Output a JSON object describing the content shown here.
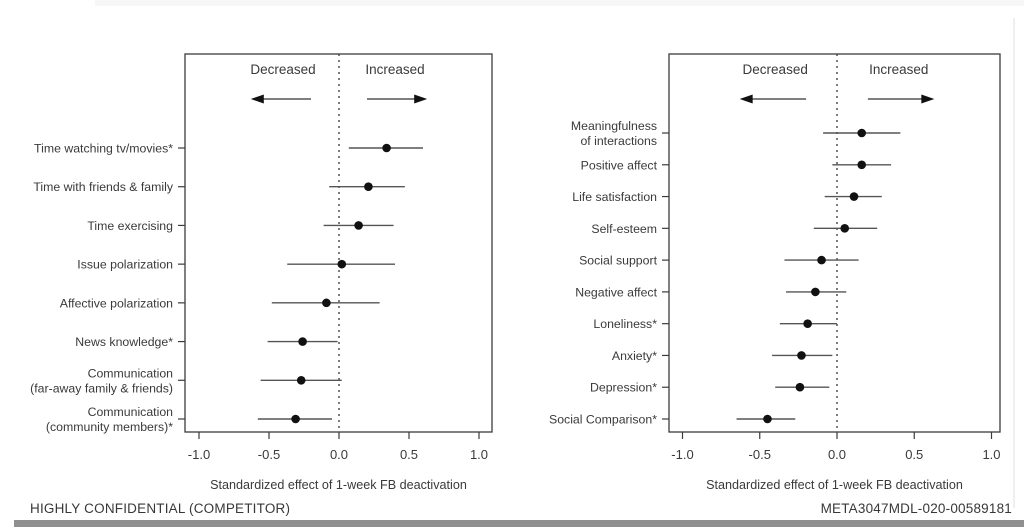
{
  "page": {
    "footer_left": "HIGHLY CONFIDENTIAL (COMPETITOR)",
    "footer_right": "META3047MDL-020-00589181"
  },
  "colors": {
    "text": "#3a3a3a",
    "box_border": "#3c3c3c",
    "ci_line": "#555555",
    "point": "#111111",
    "zero_line": "#444444",
    "footer_bar": "#8f8f8f"
  },
  "chart_data": [
    {
      "type": "scatter",
      "subtype": "forest",
      "panel": "time-use-and-politics",
      "header_decreased": "Decreased",
      "header_increased": "Increased",
      "xlabel": "Standardized effect of 1-week FB deactivation",
      "xlim": [
        -1.1,
        1.1
      ],
      "xticks": [
        -1.0,
        -0.5,
        0.0,
        0.5,
        1.0
      ],
      "xtick_labels": [
        "-1.0",
        "-0.5",
        "0.0",
        "0.5",
        "1.0"
      ],
      "zero_reference_line": true,
      "grid": false,
      "rows": [
        {
          "label": [
            "Time watching tv/movies*"
          ],
          "estimate": 0.34,
          "ci_low": 0.07,
          "ci_high": 0.6
        },
        {
          "label": [
            "Time with friends & family"
          ],
          "estimate": 0.21,
          "ci_low": -0.07,
          "ci_high": 0.47
        },
        {
          "label": [
            "Time exercising"
          ],
          "estimate": 0.14,
          "ci_low": -0.11,
          "ci_high": 0.39
        },
        {
          "label": [
            "Issue polarization"
          ],
          "estimate": 0.02,
          "ci_low": -0.37,
          "ci_high": 0.4
        },
        {
          "label": [
            "Affective polarization"
          ],
          "estimate": -0.09,
          "ci_low": -0.48,
          "ci_high": 0.29
        },
        {
          "label": [
            "News knowledge*"
          ],
          "estimate": -0.26,
          "ci_low": -0.51,
          "ci_high": -0.01
        },
        {
          "label": [
            "Communication",
            "(far-away family & friends)"
          ],
          "estimate": -0.27,
          "ci_low": -0.56,
          "ci_high": 0.02
        },
        {
          "label": [
            "Communication",
            "(community members)*"
          ],
          "estimate": -0.31,
          "ci_low": -0.58,
          "ci_high": -0.05
        }
      ]
    },
    {
      "type": "scatter",
      "subtype": "forest",
      "panel": "well-being",
      "header_decreased": "Decreased",
      "header_increased": "Increased",
      "xlabel": "Standardized effect of 1-week FB deactivation",
      "xlim": [
        -1.1,
        1.1
      ],
      "xticks": [
        -1.0,
        -0.5,
        0.0,
        0.5,
        1.0
      ],
      "xtick_labels": [
        "-1.0",
        "-0.5",
        "0.0",
        "0.5",
        "1.0"
      ],
      "zero_reference_line": true,
      "grid": false,
      "rows": [
        {
          "label": [
            "Meaningfulness",
            "of interactions"
          ],
          "estimate": 0.16,
          "ci_low": -0.09,
          "ci_high": 0.41
        },
        {
          "label": [
            "Positive affect"
          ],
          "estimate": 0.16,
          "ci_low": -0.03,
          "ci_high": 0.35
        },
        {
          "label": [
            "Life satisfaction"
          ],
          "estimate": 0.11,
          "ci_low": -0.08,
          "ci_high": 0.29
        },
        {
          "label": [
            "Self-esteem"
          ],
          "estimate": 0.05,
          "ci_low": -0.15,
          "ci_high": 0.26
        },
        {
          "label": [
            "Social support"
          ],
          "estimate": -0.1,
          "ci_low": -0.34,
          "ci_high": 0.14
        },
        {
          "label": [
            "Negative affect"
          ],
          "estimate": -0.14,
          "ci_low": -0.33,
          "ci_high": 0.06
        },
        {
          "label": [
            "Loneliness*"
          ],
          "estimate": -0.19,
          "ci_low": -0.37,
          "ci_high": 0.0
        },
        {
          "label": [
            "Anxiety*"
          ],
          "estimate": -0.23,
          "ci_low": -0.42,
          "ci_high": -0.03
        },
        {
          "label": [
            "Depression*"
          ],
          "estimate": -0.24,
          "ci_low": -0.4,
          "ci_high": -0.05
        },
        {
          "label": [
            "Social Comparison*"
          ],
          "estimate": -0.45,
          "ci_low": -0.65,
          "ci_high": -0.27
        }
      ]
    }
  ]
}
